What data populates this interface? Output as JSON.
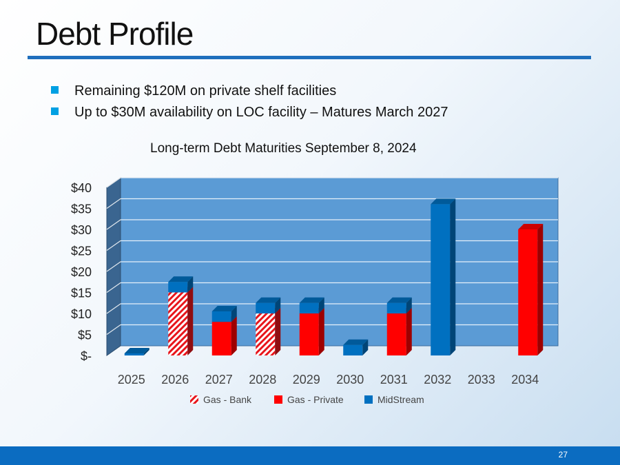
{
  "slide": {
    "title": "Debt Profile",
    "bullets": [
      "Remaining $120M on private shelf facilities",
      "Up to $30M availability on LOC facility – Matures March 2027"
    ],
    "page_number": "27"
  },
  "chart_data": {
    "type": "bar",
    "stacked": true,
    "title": "Long-term Debt Maturities September 8, 2024",
    "categories": [
      "2025",
      "2026",
      "2027",
      "2028",
      "2029",
      "2030",
      "2031",
      "2032",
      "2033",
      "2034"
    ],
    "series": [
      {
        "name": "Gas - Bank",
        "pattern": "hatched",
        "color": "#e8151b",
        "values": [
          0,
          15,
          0,
          10,
          0,
          0,
          0,
          0,
          0,
          0
        ]
      },
      {
        "name": "Gas - Private",
        "pattern": "solid",
        "color": "#ff0000",
        "values": [
          0,
          0,
          8,
          0,
          10,
          0,
          10,
          0,
          0,
          30
        ]
      },
      {
        "name": "MidStream",
        "pattern": "solid",
        "color": "#0070c0",
        "values": [
          0.5,
          2.5,
          2.5,
          2.5,
          2.5,
          2.5,
          2.5,
          36,
          0,
          0
        ]
      }
    ],
    "y_ticks": [
      "$-",
      "$5",
      "$10",
      "$15",
      "$20",
      "$25",
      "$30",
      "$35",
      "$40"
    ],
    "ylim": [
      0,
      40
    ],
    "legend_position": "bottom",
    "grid": true
  }
}
